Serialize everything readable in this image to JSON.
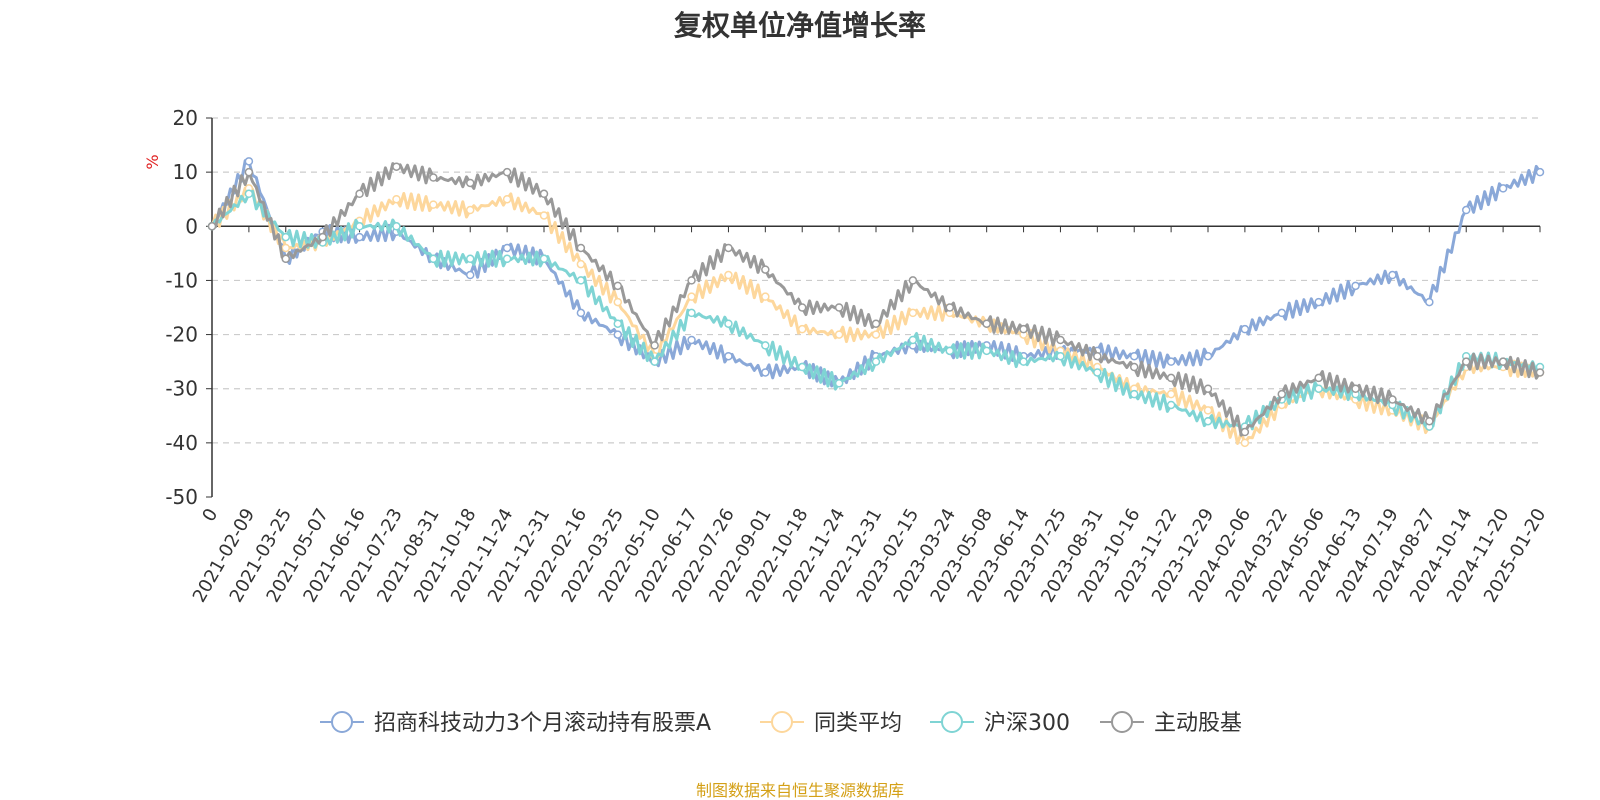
{
  "chart_data": {
    "type": "line",
    "title": "复权单位净值增长率",
    "ylabel": "%",
    "xlabel": "",
    "ylim": [
      -50,
      20
    ],
    "yticks": [
      20,
      10,
      0,
      -10,
      -20,
      -30,
      -40,
      -50
    ],
    "grid": true,
    "legend_position": "bottom",
    "categories": [
      "0",
      "2021-02-09",
      "2021-03-25",
      "2021-05-07",
      "2021-06-16",
      "2021-07-23",
      "2021-08-31",
      "2021-10-18",
      "2021-11-24",
      "2021-12-31",
      "2022-02-16",
      "2022-03-25",
      "2022-05-10",
      "2022-06-17",
      "2022-07-26",
      "2022-09-01",
      "2022-10-18",
      "2022-11-24",
      "2022-12-31",
      "2023-02-15",
      "2023-03-24",
      "2023-05-08",
      "2023-06-14",
      "2023-07-25",
      "2023-08-31",
      "2023-10-16",
      "2023-11-22",
      "2023-12-29",
      "2024-02-06",
      "2024-03-22",
      "2024-05-06",
      "2024-06-13",
      "2024-07-19",
      "2024-08-27",
      "2024-10-14",
      "2024-11-20",
      "2025-01-20"
    ],
    "series": [
      {
        "name": "招商科技动力3个月滚动持有股票A",
        "color": "#8aa8d8",
        "values": [
          0,
          12,
          -6,
          -1,
          -2,
          -1,
          -6,
          -9,
          -4,
          -6,
          -16,
          -20,
          -25,
          -21,
          -24,
          -27,
          -26,
          -29,
          -24,
          -22,
          -23,
          -22,
          -24,
          -23,
          -23,
          -24,
          -25,
          -24,
          -19,
          -16,
          -14,
          -11,
          -9,
          -14,
          3,
          7,
          10
        ]
      },
      {
        "name": "同类平均",
        "color": "#fdd79c",
        "values": [
          0,
          7,
          -4,
          -3,
          1,
          5,
          4,
          3,
          5,
          2,
          -7,
          -14,
          -24,
          -13,
          -9,
          -13,
          -19,
          -20,
          -20,
          -16,
          -16,
          -18,
          -20,
          -23,
          -26,
          -30,
          -31,
          -34,
          -40,
          -33,
          -30,
          -32,
          -34,
          -37,
          -26,
          -26,
          -27
        ]
      },
      {
        "name": "沪深300",
        "color": "#7fd4d4",
        "values": [
          0,
          6,
          -2,
          -3,
          0,
          0,
          -6,
          -6,
          -6,
          -6,
          -10,
          -18,
          -25,
          -16,
          -18,
          -22,
          -26,
          -29,
          -25,
          -21,
          -23,
          -23,
          -25,
          -24,
          -27,
          -31,
          -33,
          -36,
          -37,
          -32,
          -30,
          -31,
          -33,
          -37,
          -24,
          -25,
          -26
        ]
      },
      {
        "name": "主动股基",
        "color": "#999999",
        "values": [
          0,
          10,
          -6,
          -2,
          6,
          11,
          9,
          8,
          10,
          6,
          -4,
          -11,
          -22,
          -10,
          -4,
          -8,
          -15,
          -15,
          -18,
          -10,
          -15,
          -18,
          -19,
          -21,
          -24,
          -26,
          -28,
          -30,
          -38,
          -31,
          -28,
          -30,
          -32,
          -36,
          -25,
          -25,
          -27
        ]
      }
    ]
  },
  "source_note": {
    "text": "制图数据来自恒生聚源数据库",
    "color": "#d4a017"
  }
}
